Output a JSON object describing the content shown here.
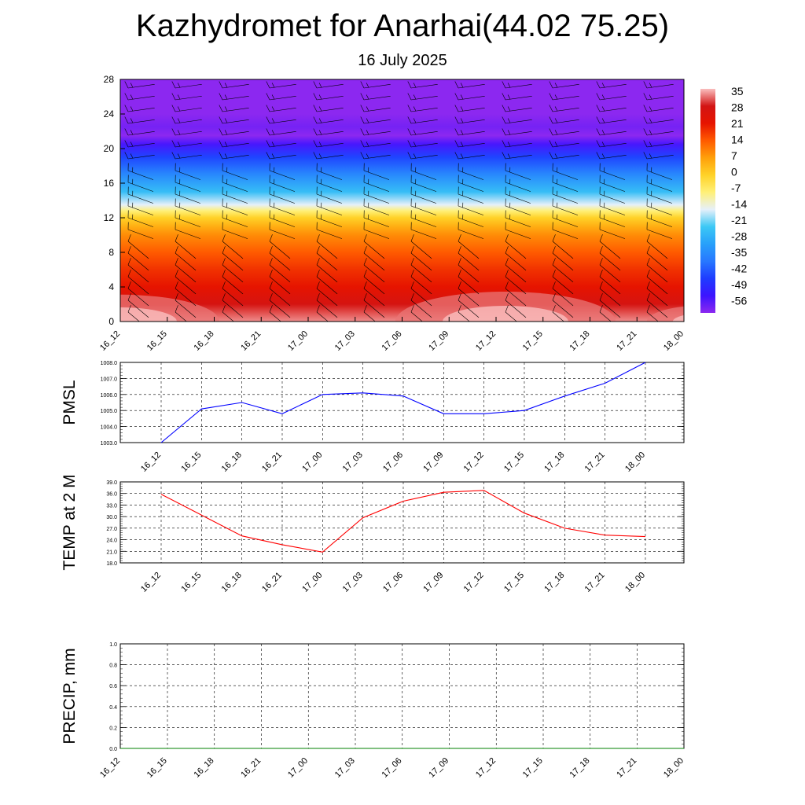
{
  "title": "Kazhydromet for Anarhai(44.02 75.25)",
  "subtitle": "16 July 2025",
  "chart_data": [
    {
      "type": "heatmap",
      "ylim": [
        0,
        28
      ],
      "y_ticks": [
        "0",
        "4",
        "8",
        "12",
        "16",
        "20",
        "24",
        "28"
      ],
      "x_ticks": [
        "16_12",
        "16_15",
        "16_18",
        "16_21",
        "17_00",
        "17_03",
        "17_06",
        "17_09",
        "17_12",
        "17_15",
        "17_18",
        "17_21",
        "18_00"
      ],
      "colorbar_labels": [
        "35",
        "28",
        "21",
        "14",
        "7",
        "0",
        "-7",
        "-14",
        "-21",
        "-28",
        "-35",
        "-42",
        "-49",
        "-56"
      ],
      "profile": {
        "levels": [
          0,
          2,
          4,
          6,
          8,
          10,
          11,
          12,
          12.8,
          13.5,
          15,
          17,
          19,
          20.5,
          21.5,
          22.5,
          24,
          28
        ],
        "values": [
          33,
          27,
          21,
          18,
          14,
          9,
          5,
          0,
          -7,
          -14,
          -23,
          -32,
          -41,
          -50,
          -58,
          -54,
          -56,
          -56
        ]
      }
    },
    {
      "type": "line",
      "ylabel": "PMSL",
      "x_ticks": [
        "16_12",
        "16_15",
        "16_18",
        "16_21",
        "17_00",
        "17_03",
        "17_06",
        "17_09",
        "17_12",
        "17_15",
        "17_18",
        "17_21",
        "18_00"
      ],
      "ylim": [
        1003.0,
        1008.0
      ],
      "y_ticks": [
        "1003.0",
        "1004.0",
        "1005.0",
        "1006.0",
        "1007.0",
        "1008.0"
      ],
      "series": [
        {
          "color": "#0000ff",
          "values": [
            1003.0,
            1005.1,
            1005.5,
            1004.8,
            1006.0,
            1006.1,
            1005.9,
            1004.8,
            1004.8,
            1005.0,
            1005.9,
            1006.7,
            1008.0
          ]
        }
      ]
    },
    {
      "type": "line",
      "ylabel": "TEMP at 2 M",
      "x_ticks": [
        "16_12",
        "16_15",
        "16_18",
        "16_21",
        "17_00",
        "17_03",
        "17_06",
        "17_09",
        "17_12",
        "17_15",
        "17_18",
        "17_21",
        "18_00"
      ],
      "ylim": [
        18.0,
        39.0
      ],
      "y_ticks": [
        "18.0",
        "21.0",
        "24.0",
        "27.0",
        "30.0",
        "33.0",
        "36.0",
        "39.0"
      ],
      "series": [
        {
          "color": "#ff0000",
          "values": [
            35.8,
            30.4,
            25.0,
            22.7,
            20.8,
            29.7,
            34.0,
            36.3,
            36.8,
            30.9,
            27.0,
            25.2,
            24.8
          ]
        }
      ]
    },
    {
      "type": "line",
      "ylabel": "PRECIP, mm",
      "x_ticks": [
        "16_12",
        "16_15",
        "16_18",
        "16_21",
        "17_00",
        "17_03",
        "17_06",
        "17_09",
        "17_12",
        "17_15",
        "17_18",
        "17_21",
        "18_00"
      ],
      "ylim": [
        0.0,
        1.0
      ],
      "y_ticks": [
        "0.0",
        "0.2",
        "0.4",
        "0.6",
        "0.8",
        "1.0"
      ],
      "series": [
        {
          "color": "#008000",
          "values": [
            0,
            0,
            0,
            0,
            0,
            0,
            0,
            0,
            0,
            0,
            0,
            0,
            0
          ]
        }
      ]
    }
  ]
}
